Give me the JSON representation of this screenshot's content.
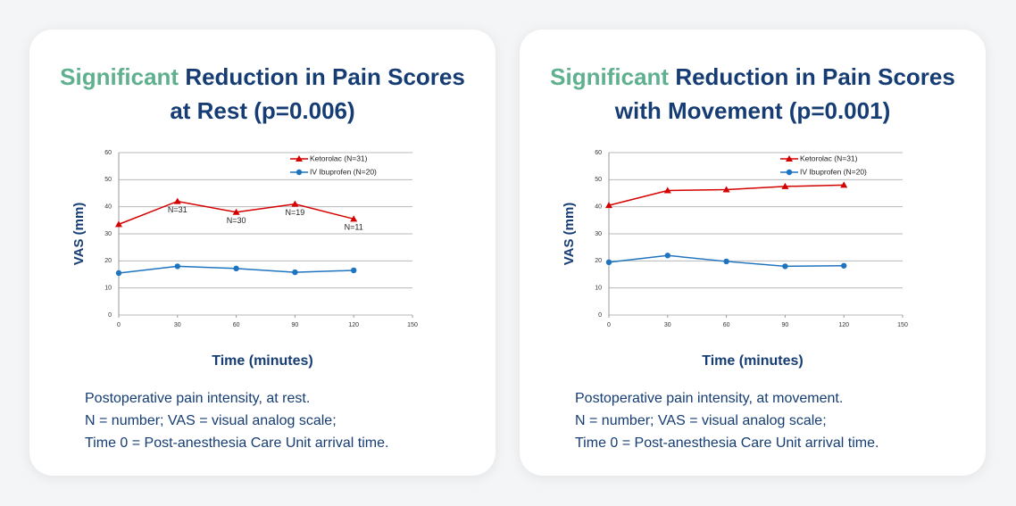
{
  "chart_data": [
    {
      "type": "line",
      "title_highlight": "Significant",
      "title": "Reduction in Pain Scores at Rest (p=0.006)",
      "x_label": "Time (minutes)",
      "y_label": "VAS (mm)",
      "x": [
        0,
        30,
        60,
        90,
        120
      ],
      "xlim": [
        0,
        150
      ],
      "xticks": [
        0,
        30,
        60,
        90,
        120,
        150
      ],
      "ylim": [
        0,
        60
      ],
      "yticks": [
        0,
        10,
        20,
        30,
        40,
        50,
        60
      ],
      "grid": true,
      "series": [
        {
          "name": "Ketorolac (N=31)",
          "color": "#d40000",
          "marker": "triangle",
          "values": [
            33.5,
            42,
            38,
            41,
            35.5
          ]
        },
        {
          "name": "IV Ibuprofen (N=20)",
          "color": "#1f74c0",
          "marker": "circle",
          "values": [
            15.5,
            18,
            17.2,
            15.8,
            16.5
          ]
        }
      ],
      "annotations": [
        {
          "text": "N=31",
          "x": 30
        },
        {
          "text": "N=30",
          "x": 60
        },
        {
          "text": "N=19",
          "x": 90
        },
        {
          "text": "N=11",
          "x": 120
        }
      ],
      "caption": [
        "Postoperative pain intensity, at rest.",
        "N = number; VAS = visual analog scale;",
        "Time 0 = Post-anesthesia Care Unit arrival time."
      ]
    },
    {
      "type": "line",
      "title_highlight": "Significant",
      "title": "Reduction in Pain Scores with Movement (p=0.001)",
      "x_label": "Time (minutes)",
      "y_label": "VAS (mm)",
      "x": [
        0,
        30,
        60,
        90,
        120
      ],
      "xlim": [
        0,
        150
      ],
      "xticks": [
        0,
        30,
        60,
        90,
        120,
        150
      ],
      "ylim": [
        0,
        60
      ],
      "yticks": [
        0,
        10,
        20,
        30,
        40,
        50,
        60
      ],
      "grid": true,
      "series": [
        {
          "name": "Ketorolac (N=31)",
          "color": "#d40000",
          "marker": "triangle",
          "values": [
            40.5,
            46,
            46.3,
            47.5,
            48
          ]
        },
        {
          "name": "IV Ibuprofen (N=20)",
          "color": "#1f74c0",
          "marker": "circle",
          "values": [
            19.5,
            22,
            19.8,
            18,
            18.2
          ]
        }
      ],
      "annotations": [],
      "caption": [
        "Postoperative pain intensity, at movement.",
        "N = number; VAS = visual analog scale;",
        "Time 0 = Post-anesthesia Care Unit arrival time."
      ]
    }
  ]
}
